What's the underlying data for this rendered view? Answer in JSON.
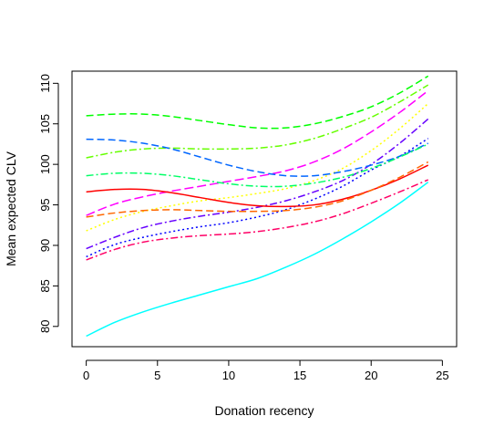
{
  "chart_data": {
    "type": "line",
    "title": "",
    "xlabel": "Donation recency",
    "ylabel": "Mean expected CLV",
    "xlim": [
      -1,
      26
    ],
    "ylim": [
      77.5,
      111.5
    ],
    "xticks": [
      0,
      5,
      10,
      15,
      20,
      25
    ],
    "yticks": [
      80,
      85,
      90,
      95,
      100,
      105,
      110
    ],
    "legend": "none",
    "grid": false,
    "x": [
      0,
      2,
      4,
      6,
      8,
      10,
      12,
      14,
      16,
      18,
      20,
      22,
      24
    ],
    "series": [
      {
        "color": "#00ff00",
        "dash": "8,4",
        "values": [
          106.0,
          106.2,
          106.2,
          105.9,
          105.4,
          104.9,
          104.5,
          104.5,
          105.0,
          105.9,
          107.1,
          108.8,
          110.9
        ]
      },
      {
        "color": "#66ff00",
        "dash": "8,3,2,3",
        "values": [
          100.8,
          101.5,
          101.9,
          102.0,
          101.9,
          101.9,
          102.0,
          102.4,
          103.2,
          104.4,
          105.8,
          107.7,
          109.8
        ]
      },
      {
        "color": "#ff00ff",
        "dash": "10,4",
        "values": [
          93.7,
          95.1,
          96.0,
          96.7,
          97.3,
          97.9,
          98.5,
          99.2,
          100.3,
          101.9,
          104.0,
          106.4,
          109.1
        ]
      },
      {
        "color": "#ffff00",
        "dash": "2,3",
        "values": [
          91.8,
          93.2,
          94.2,
          94.9,
          95.5,
          95.9,
          96.4,
          97.0,
          98.0,
          99.5,
          101.7,
          104.4,
          107.5
        ]
      },
      {
        "color": "#6600ff",
        "dash": "8,3,2,3",
        "values": [
          89.6,
          91.0,
          92.2,
          93.0,
          93.6,
          94.1,
          94.7,
          95.5,
          96.6,
          98.0,
          100.0,
          102.6,
          105.6
        ]
      },
      {
        "color": "#0000ff",
        "dash": "2,3",
        "values": [
          88.6,
          90.1,
          91.0,
          91.7,
          92.3,
          92.8,
          93.5,
          94.4,
          95.7,
          97.3,
          99.3,
          101.0,
          103.2
        ]
      },
      {
        "color": "#0066ff",
        "dash": "8,4",
        "values": [
          103.1,
          103.0,
          102.6,
          101.9,
          100.9,
          99.9,
          99.1,
          98.6,
          98.6,
          99.1,
          99.9,
          101.0,
          102.6
        ]
      },
      {
        "color": "#00ff66",
        "dash": "8,3,2,3",
        "values": [
          98.6,
          98.9,
          98.9,
          98.6,
          98.1,
          97.6,
          97.3,
          97.3,
          97.7,
          98.4,
          99.5,
          100.9,
          102.5
        ]
      },
      {
        "color": "#ff0000",
        "dash": "",
        "values": [
          96.6,
          96.9,
          96.9,
          96.5,
          95.9,
          95.3,
          94.9,
          94.8,
          95.0,
          95.7,
          96.8,
          98.2,
          99.9
        ]
      },
      {
        "color": "#ff6600",
        "dash": "8,4",
        "values": [
          93.5,
          94.0,
          94.3,
          94.4,
          94.3,
          94.2,
          94.2,
          94.3,
          94.7,
          95.5,
          96.8,
          98.4,
          100.3
        ]
      },
      {
        "color": "#ff0066",
        "dash": "8,3,2,3",
        "values": [
          88.2,
          89.5,
          90.4,
          90.9,
          91.2,
          91.4,
          91.7,
          92.2,
          92.9,
          93.9,
          95.2,
          96.6,
          98.1
        ]
      },
      {
        "color": "#00ffff",
        "dash": "",
        "values": [
          78.8,
          80.5,
          81.8,
          82.9,
          83.9,
          84.9,
          85.9,
          87.3,
          88.9,
          90.8,
          92.9,
          95.2,
          97.8
        ]
      }
    ]
  }
}
